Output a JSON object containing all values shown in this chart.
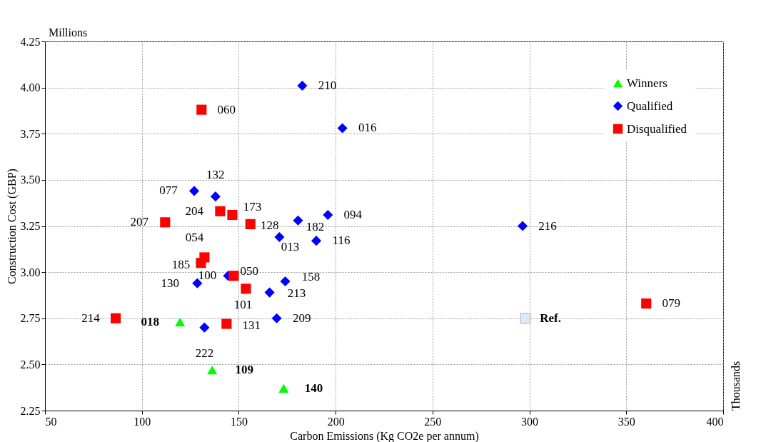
{
  "chart_data": {
    "type": "scatter",
    "xlabel": "Carbon Emissions (Kg CO2e per annum)",
    "ylabel": "Construction Cost (GBP)",
    "annotations": [
      "Millions",
      "Thousands",
      {
        "text": "018",
        "x": 119.7,
        "y": 2.73
      },
      {
        "text": "109",
        "x": 136.3,
        "y": 2.47
      },
      {
        "text": "140",
        "x": 173.2,
        "y": 2.37
      },
      {
        "text": "210",
        "x": 182.8,
        "y": 4.01
      },
      {
        "text": "016",
        "x": 203.5,
        "y": 3.78
      },
      {
        "text": "077",
        "x": 127,
        "y": 3.44
      },
      {
        "text": "132",
        "x": 138,
        "y": 3.41
      },
      {
        "text": "094",
        "x": 196,
        "y": 3.31
      },
      {
        "text": "182",
        "x": 180.6,
        "y": 3.28
      },
      {
        "text": "013",
        "x": 171,
        "y": 3.19
      },
      {
        "text": "116",
        "x": 190,
        "y": 3.17
      },
      {
        "text": "216",
        "x": 296.5,
        "y": 3.25
      },
      {
        "text": "100",
        "x": 144.5,
        "y": 2.98
      },
      {
        "text": "130",
        "x": 128.6,
        "y": 2.94
      },
      {
        "text": "158",
        "x": 174,
        "y": 2.95
      },
      {
        "text": "213",
        "x": 165.9,
        "y": 2.89
      },
      {
        "text": "209",
        "x": 169.6,
        "y": 2.75
      },
      {
        "text": "222",
        "x": 132.3,
        "y": 2.7
      },
      {
        "text": "060",
        "x": 130.8,
        "y": 3.88
      },
      {
        "text": "204",
        "x": 140.4,
        "y": 3.33
      },
      {
        "text": "173",
        "x": 146.7,
        "y": 3.31
      },
      {
        "text": "128",
        "x": 156,
        "y": 3.26
      },
      {
        "text": "207",
        "x": 112,
        "y": 3.27
      },
      {
        "text": "054",
        "x": 132.3,
        "y": 3.08
      },
      {
        "text": "185",
        "x": 130.5,
        "y": 3.05
      },
      {
        "text": "050",
        "x": 147.4,
        "y": 2.98
      },
      {
        "text": "101",
        "x": 153.7,
        "y": 2.91
      },
      {
        "text": "131",
        "x": 143.7,
        "y": 2.72
      },
      {
        "text": "214",
        "x": 86.5,
        "y": 2.75
      },
      {
        "text": "079",
        "x": 360.3,
        "y": 2.83
      },
      {
        "text": "Ref.",
        "x": 298,
        "y": 2.75
      }
    ],
    "xlim": [
      50,
      400
    ],
    "xticks": [
      50,
      100,
      150,
      200,
      250,
      300,
      350,
      400
    ],
    "ylim": [
      2.25,
      4.25
    ],
    "yticks": [
      2.25,
      {
        "value": 2.5,
        "label": "2.50"
      },
      2.75,
      {
        "value": 3,
        "label": "3.00"
      },
      3.25,
      {
        "value": 3.5,
        "label": "3.50"
      },
      3.75,
      {
        "value": 4,
        "label": "4.00"
      },
      4.25
    ],
    "grid": true,
    "legend": "top right",
    "series": [
      {
        "name": "Winners",
        "color": "#00ff00",
        "marker": "triangle",
        "x": [
          119.7,
          136.3,
          173.2
        ],
        "values": [
          2.73,
          2.47,
          2.37
        ]
      },
      {
        "name": "Qualified",
        "color": "#0000ff",
        "marker": "diamond",
        "x": [
          182.8,
          203.5,
          127,
          138,
          196,
          180.6,
          171,
          190,
          296.5,
          144.5,
          128.6,
          174,
          165.9,
          169.6,
          132.3
        ],
        "values": [
          4.01,
          3.78,
          3.44,
          3.41,
          3.31,
          3.28,
          3.19,
          3.17,
          3.25,
          2.98,
          2.94,
          2.95,
          2.89,
          2.75,
          2.7
        ]
      },
      {
        "name": "Disqualified",
        "color": "#ff0000",
        "marker": "square",
        "x": [
          130.8,
          140.4,
          146.7,
          156,
          112,
          132.3,
          130.5,
          147.4,
          153.7,
          143.7,
          86.5,
          360.3
        ],
        "values": [
          3.88,
          3.33,
          3.31,
          3.26,
          3.27,
          3.08,
          3.05,
          2.98,
          2.91,
          2.72,
          2.75,
          2.83
        ]
      },
      {
        "color": "#d6ecfa",
        "marker": "square",
        "x": [
          298
        ],
        "values": [
          2.75
        ]
      }
    ]
  }
}
